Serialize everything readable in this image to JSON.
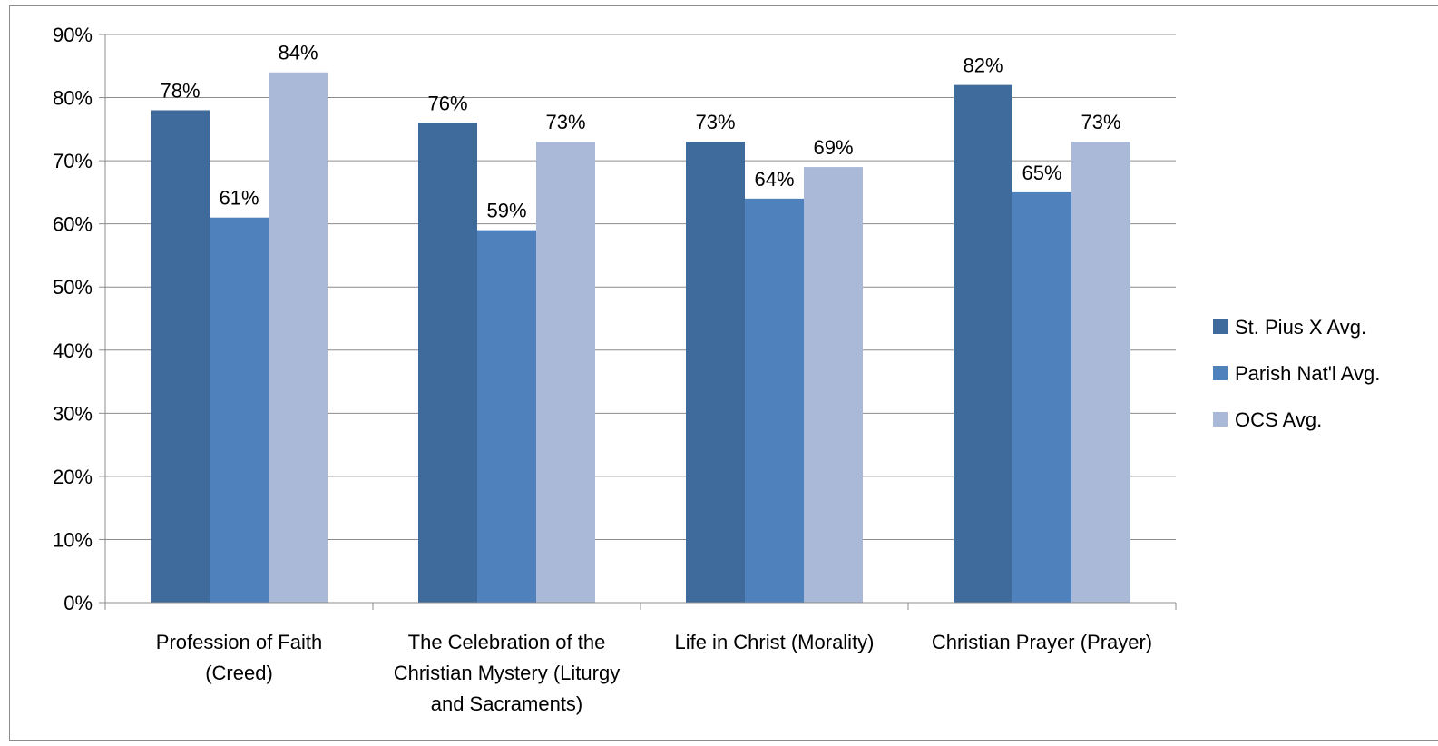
{
  "chart_data": {
    "type": "bar",
    "title": "",
    "xlabel": "",
    "ylabel": "",
    "ylim": [
      0,
      90
    ],
    "yticks": [
      0,
      10,
      20,
      30,
      40,
      50,
      60,
      70,
      80,
      90
    ],
    "ytick_labels": [
      "0%",
      "10%",
      "20%",
      "30%",
      "40%",
      "50%",
      "60%",
      "70%",
      "80%",
      "90%"
    ],
    "categories": [
      [
        "Profession of Faith",
        "(Creed)"
      ],
      [
        "The Celebration of the",
        "Christian Mystery (Liturgy",
        "and Sacraments)"
      ],
      [
        "Life in Christ (Morality)"
      ],
      [
        "Christian Prayer (Prayer)"
      ]
    ],
    "series": [
      {
        "name": "St. Pius X Avg.",
        "color": "#3f6b9c",
        "values": [
          78,
          76,
          73,
          82
        ],
        "labels": [
          "78%",
          "76%",
          "73%",
          "82%"
        ]
      },
      {
        "name": "Parish Nat'l Avg.",
        "color": "#4f81bd",
        "values": [
          61,
          59,
          64,
          65
        ],
        "labels": [
          "61%",
          "59%",
          "64%",
          "65%"
        ]
      },
      {
        "name": "OCS Avg.",
        "color": "#aab9d7",
        "values": [
          84,
          73,
          69,
          73
        ],
        "labels": [
          "84%",
          "73%",
          "69%",
          "73%"
        ]
      }
    ],
    "grid": true,
    "legend_position": "right"
  }
}
